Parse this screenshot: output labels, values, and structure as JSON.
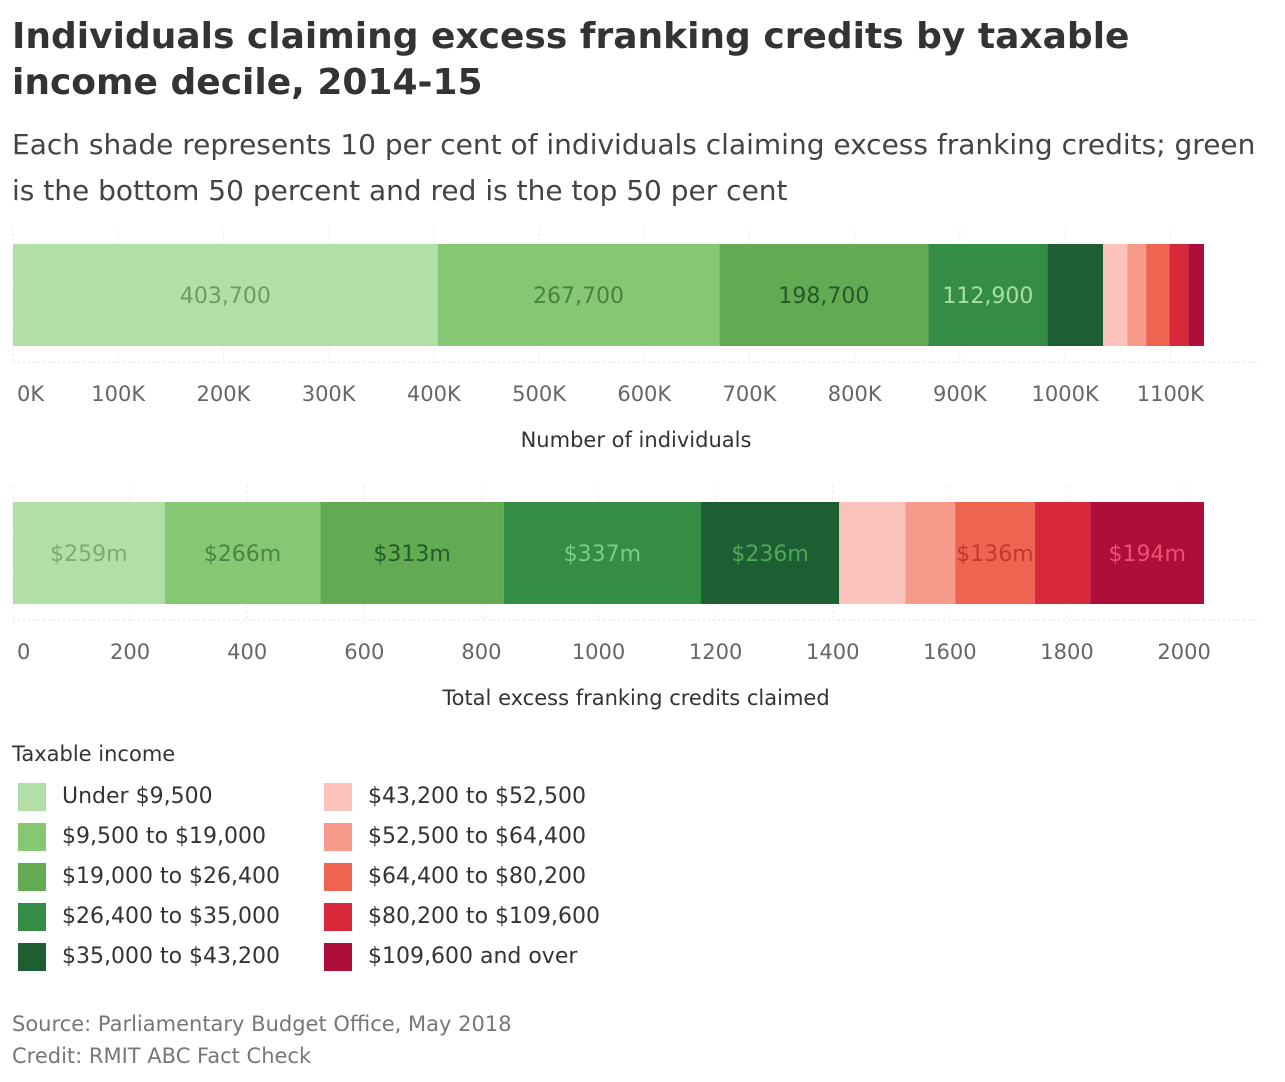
{
  "title": "Individuals claiming excess franking credits by taxable income decile, 2014-15",
  "subtitle": "Each shade represents 10 per cent of individuals claiming excess franking credits; green is the bottom 50 percent and red is the top 50 per cent",
  "legend": {
    "title": "Taxable income",
    "items": [
      {
        "label": "Under $9,500",
        "color": "#b2dfa6"
      },
      {
        "label": "$9,500 to $19,000",
        "color": "#86c774"
      },
      {
        "label": "$19,000 to $26,400",
        "color": "#62ab52"
      },
      {
        "label": "$26,400 to $35,000",
        "color": "#358c45"
      },
      {
        "label": "$35,000 to $43,200",
        "color": "#1e5e33"
      },
      {
        "label": "$43,200 to $52,500",
        "color": "#fbc2bc"
      },
      {
        "label": "$52,500 to $64,400",
        "color": "#f79a8b"
      },
      {
        "label": "$64,400 to $80,200",
        "color": "#ee6450"
      },
      {
        "label": "$80,200 to $109,600",
        "color": "#d8283a"
      },
      {
        "label": "$109,600 and over",
        "color": "#ad0f3a"
      }
    ]
  },
  "chart_data": [
    {
      "type": "bar",
      "orientation": "horizontal",
      "stacked": true,
      "xlabel": "Number of individuals",
      "xlim": [
        0,
        1200000
      ],
      "ticks": [
        {
          "value": 0,
          "label": "0K"
        },
        {
          "value": 100000,
          "label": "100K"
        },
        {
          "value": 200000,
          "label": "200K"
        },
        {
          "value": 300000,
          "label": "300K"
        },
        {
          "value": 400000,
          "label": "400K"
        },
        {
          "value": 500000,
          "label": "500K"
        },
        {
          "value": 600000,
          "label": "600K"
        },
        {
          "value": 700000,
          "label": "700K"
        },
        {
          "value": 800000,
          "label": "800K"
        },
        {
          "value": 900000,
          "label": "900K"
        },
        {
          "value": 1000000,
          "label": "1000K"
        },
        {
          "value": 1100000,
          "label": "1100K"
        }
      ],
      "segments": [
        {
          "value": 403700,
          "label": "403,700",
          "label_color": "#6f9a67"
        },
        {
          "value": 267700,
          "label": "267,700",
          "label_color": "#4b8040"
        },
        {
          "value": 198700,
          "label": "198,700",
          "label_color": "#25592a"
        },
        {
          "value": 112900,
          "label": "112,900",
          "label_color": "#a6e0a0"
        },
        {
          "value": 53000,
          "label": ""
        },
        {
          "value": 23000,
          "label": ""
        },
        {
          "value": 18000,
          "label": ""
        },
        {
          "value": 22000,
          "label": ""
        },
        {
          "value": 18000,
          "label": ""
        },
        {
          "value": 15000,
          "label": ""
        }
      ]
    },
    {
      "type": "bar",
      "orientation": "horizontal",
      "stacked": true,
      "xlabel": "Total excess franking credits claimed",
      "xlim": [
        0,
        2100
      ],
      "ticks": [
        {
          "value": 0,
          "label": "0"
        },
        {
          "value": 200,
          "label": "200"
        },
        {
          "value": 400,
          "label": "400"
        },
        {
          "value": 600,
          "label": "600"
        },
        {
          "value": 800,
          "label": "800"
        },
        {
          "value": 1000,
          "label": "1000"
        },
        {
          "value": 1200,
          "label": "1200"
        },
        {
          "value": 1400,
          "label": "1400"
        },
        {
          "value": 1600,
          "label": "1600"
        },
        {
          "value": 1800,
          "label": "1800"
        },
        {
          "value": 2000,
          "label": "2000"
        }
      ],
      "segments": [
        {
          "value": 259,
          "label": "$259m",
          "label_color": "#7fa877"
        },
        {
          "value": 266,
          "label": "$266m",
          "label_color": "#4e8243"
        },
        {
          "value": 313,
          "label": "$313m",
          "label_color": "#25592a"
        },
        {
          "value": 337,
          "label": "$337m",
          "label_color": "#7dce7e"
        },
        {
          "value": 236,
          "label": "$236m",
          "label_color": "#4ea85a"
        },
        {
          "value": 113,
          "label": ""
        },
        {
          "value": 85,
          "label": ""
        },
        {
          "value": 136,
          "label": "$136m",
          "label_color": "#c0392b"
        },
        {
          "value": 95,
          "label": ""
        },
        {
          "value": 194,
          "label": "$194m",
          "label_color": "#ef4f72"
        }
      ]
    }
  ],
  "footer": {
    "source": "Source: Parliamentary Budget Office, May 2018",
    "credit": "Credit: RMIT ABC Fact Check"
  }
}
